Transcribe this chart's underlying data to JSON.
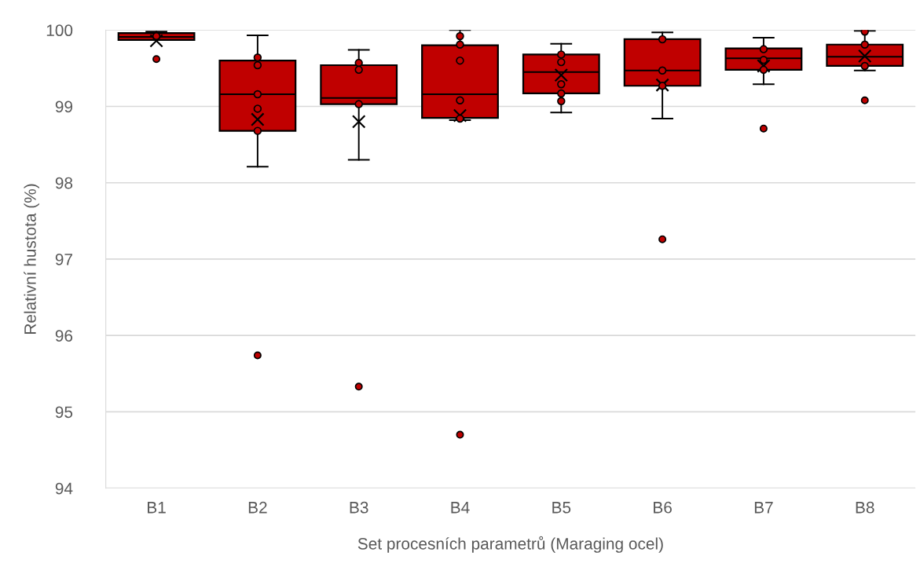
{
  "chart_data": {
    "type": "box",
    "xlabel": "Set procesních parametrů (Maraging ocel)",
    "ylabel": "Relativní hustota (%)",
    "categories": [
      "B1",
      "B2",
      "B3",
      "B4",
      "B5",
      "B6",
      "B7",
      "B8"
    ],
    "ylim": [
      94,
      100
    ],
    "yticks": [
      94,
      95,
      96,
      97,
      98,
      99,
      100
    ],
    "grid": "y",
    "legend": false,
    "series": [
      {
        "color": "#c00000",
        "boxes": [
          {
            "low": 99.87,
            "q1": 99.87,
            "median": 99.91,
            "q3": 99.96,
            "high": 99.98,
            "mean": 99.86,
            "outliers": [
              99.62
            ]
          },
          {
            "low": 98.21,
            "q1": 98.68,
            "median": 99.16,
            "q3": 99.6,
            "high": 99.93,
            "mean": 98.83,
            "outliers": [
              95.74
            ]
          },
          {
            "low": 98.3,
            "q1": 99.03,
            "median": 99.11,
            "q3": 99.54,
            "high": 99.74,
            "mean": 98.8,
            "outliers": [
              95.33
            ]
          },
          {
            "low": 98.82,
            "q1": 98.85,
            "median": 99.16,
            "q3": 99.8,
            "high": 100.0,
            "mean": 98.88,
            "outliers": [
              94.7
            ]
          },
          {
            "low": 98.92,
            "q1": 99.17,
            "median": 99.45,
            "q3": 99.68,
            "high": 99.82,
            "mean": 99.41
          },
          {
            "low": 98.84,
            "q1": 99.27,
            "median": 99.47,
            "q3": 99.88,
            "high": 99.97,
            "mean": 99.28,
            "outliers": [
              97.26
            ]
          },
          {
            "low": 99.29,
            "q1": 99.48,
            "median": 99.63,
            "q3": 99.76,
            "high": 99.9,
            "mean": 99.53,
            "outliers": [
              98.71
            ]
          },
          {
            "low": 99.47,
            "q1": 99.53,
            "median": 99.65,
            "q3": 99.81,
            "high": 99.99,
            "mean": 99.66,
            "outliers": [
              99.08
            ]
          }
        ]
      },
      {
        "type": "scatter",
        "color": "#c00000",
        "marker": "circle",
        "x": [
          "B1",
          "B2",
          "B2",
          "B2",
          "B2",
          "B2",
          "B3",
          "B3",
          "B3",
          "B4",
          "B4",
          "B4",
          "B4",
          "B4",
          "B5",
          "B5",
          "B5",
          "B5",
          "B5",
          "B6",
          "B6",
          "B6",
          "B7",
          "B7",
          "B7",
          "B8",
          "B8",
          "B8"
        ],
        "values": [
          99.92,
          99.64,
          99.54,
          99.16,
          98.97,
          98.68,
          99.57,
          99.48,
          99.03,
          99.92,
          99.81,
          99.6,
          99.08,
          98.84,
          99.68,
          99.58,
          99.29,
          99.17,
          99.07,
          99.88,
          99.47,
          99.27,
          99.75,
          99.61,
          99.48,
          99.98,
          99.81,
          99.53
        ]
      }
    ]
  }
}
